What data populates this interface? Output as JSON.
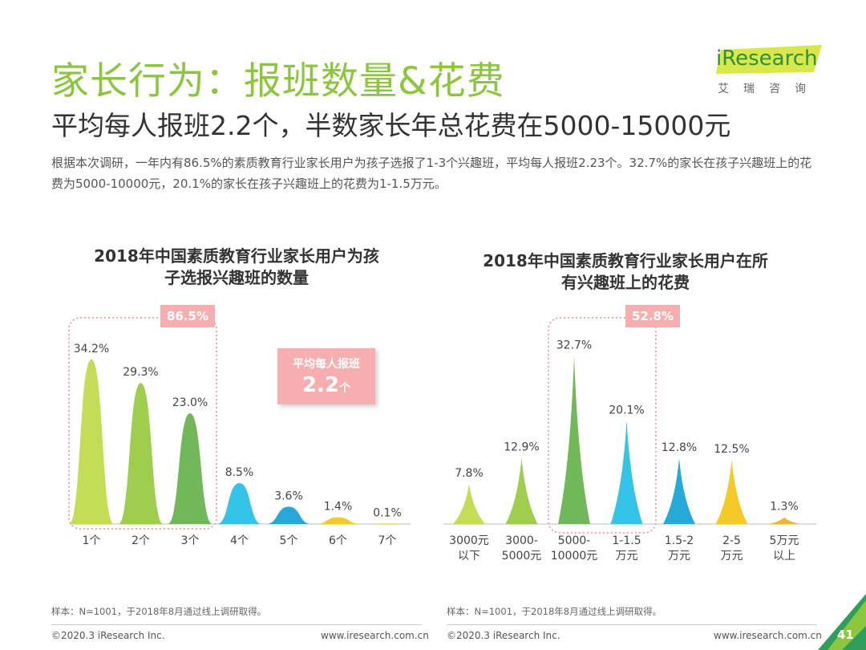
{
  "header": {
    "title": "家长行为：报班数量&花费",
    "subtitle": "平均每人报班2.2个，半数家长年总花费在5000-15000元",
    "description": "根据本次调研，一年内有86.5%的素质教育行业家长用户为孩子选报了1-3个兴趣班，平均每人报班2.23个。32.7%的家长在孩子兴趣班上的花费为5000-10000元，20.1%的家长在孩子兴趣班上的花费为1-1.5万元。"
  },
  "logo": {
    "brand": "iResearch",
    "cn": "艾瑞咨询"
  },
  "chart_data": [
    {
      "type": "area",
      "title": "2018年中国素质教育行业家长用户为孩子选报兴趣班的数量",
      "categories": [
        "1个",
        "2个",
        "3个",
        "4个",
        "5个",
        "6个",
        "7个"
      ],
      "values": [
        34.2,
        29.3,
        23.0,
        8.5,
        3.6,
        1.4,
        0.1
      ],
      "value_labels": [
        "34.2%",
        "29.3%",
        "23.0%",
        "8.5%",
        "3.6%",
        "1.4%",
        "0.1%"
      ],
      "unit": "%",
      "colors": [
        "#c5dc56",
        "#9fce4e",
        "#72b85a",
        "#35c3ea",
        "#26a8d8",
        "#f5c927",
        "#f0b43a"
      ],
      "highlight": {
        "categories": [
          "1个",
          "2个",
          "3个"
        ],
        "label": "86.5%"
      },
      "callout": {
        "label": "平均每人报班",
        "value": "2.2",
        "unit": "个"
      },
      "note": "样本：N=1001，于2018年8月通过线上调研取得。"
    },
    {
      "type": "area",
      "title": "2018年中国素质教育行业家长用户在所有兴趣班上的花费",
      "categories": [
        "3000元以下",
        "3000-5000元",
        "5000-10000元",
        "1-1.5万元",
        "1.5-2万元",
        "2-5万元",
        "5万元以上"
      ],
      "category_lines": [
        [
          "3000元",
          "以下"
        ],
        [
          "3000-",
          "5000元"
        ],
        [
          "5000-",
          "10000元"
        ],
        [
          "1-1.5",
          "万元"
        ],
        [
          "1.5-2",
          "万元"
        ],
        [
          "2-5",
          "万元"
        ],
        [
          "5万元",
          "以上"
        ]
      ],
      "values": [
        7.8,
        12.9,
        32.7,
        20.1,
        12.8,
        12.5,
        1.3
      ],
      "value_labels": [
        "7.8%",
        "12.9%",
        "32.7%",
        "20.1%",
        "12.8%",
        "12.5%",
        "1.3%"
      ],
      "unit": "%",
      "colors": [
        "#c5dc56",
        "#9fce4e",
        "#72b85a",
        "#35c3ea",
        "#26a8d8",
        "#f5c927",
        "#f0b43a"
      ],
      "highlight": {
        "categories": [
          "5000-10000元",
          "1-1.5万元"
        ],
        "label": "52.8%"
      },
      "note": "样本：N=1001，于2018年8月通过线上调研取得。"
    }
  ],
  "footer": {
    "copyright": "©2020.3 iResearch Inc.",
    "website": "www.iresearch.com.cn",
    "page_number": "41"
  }
}
